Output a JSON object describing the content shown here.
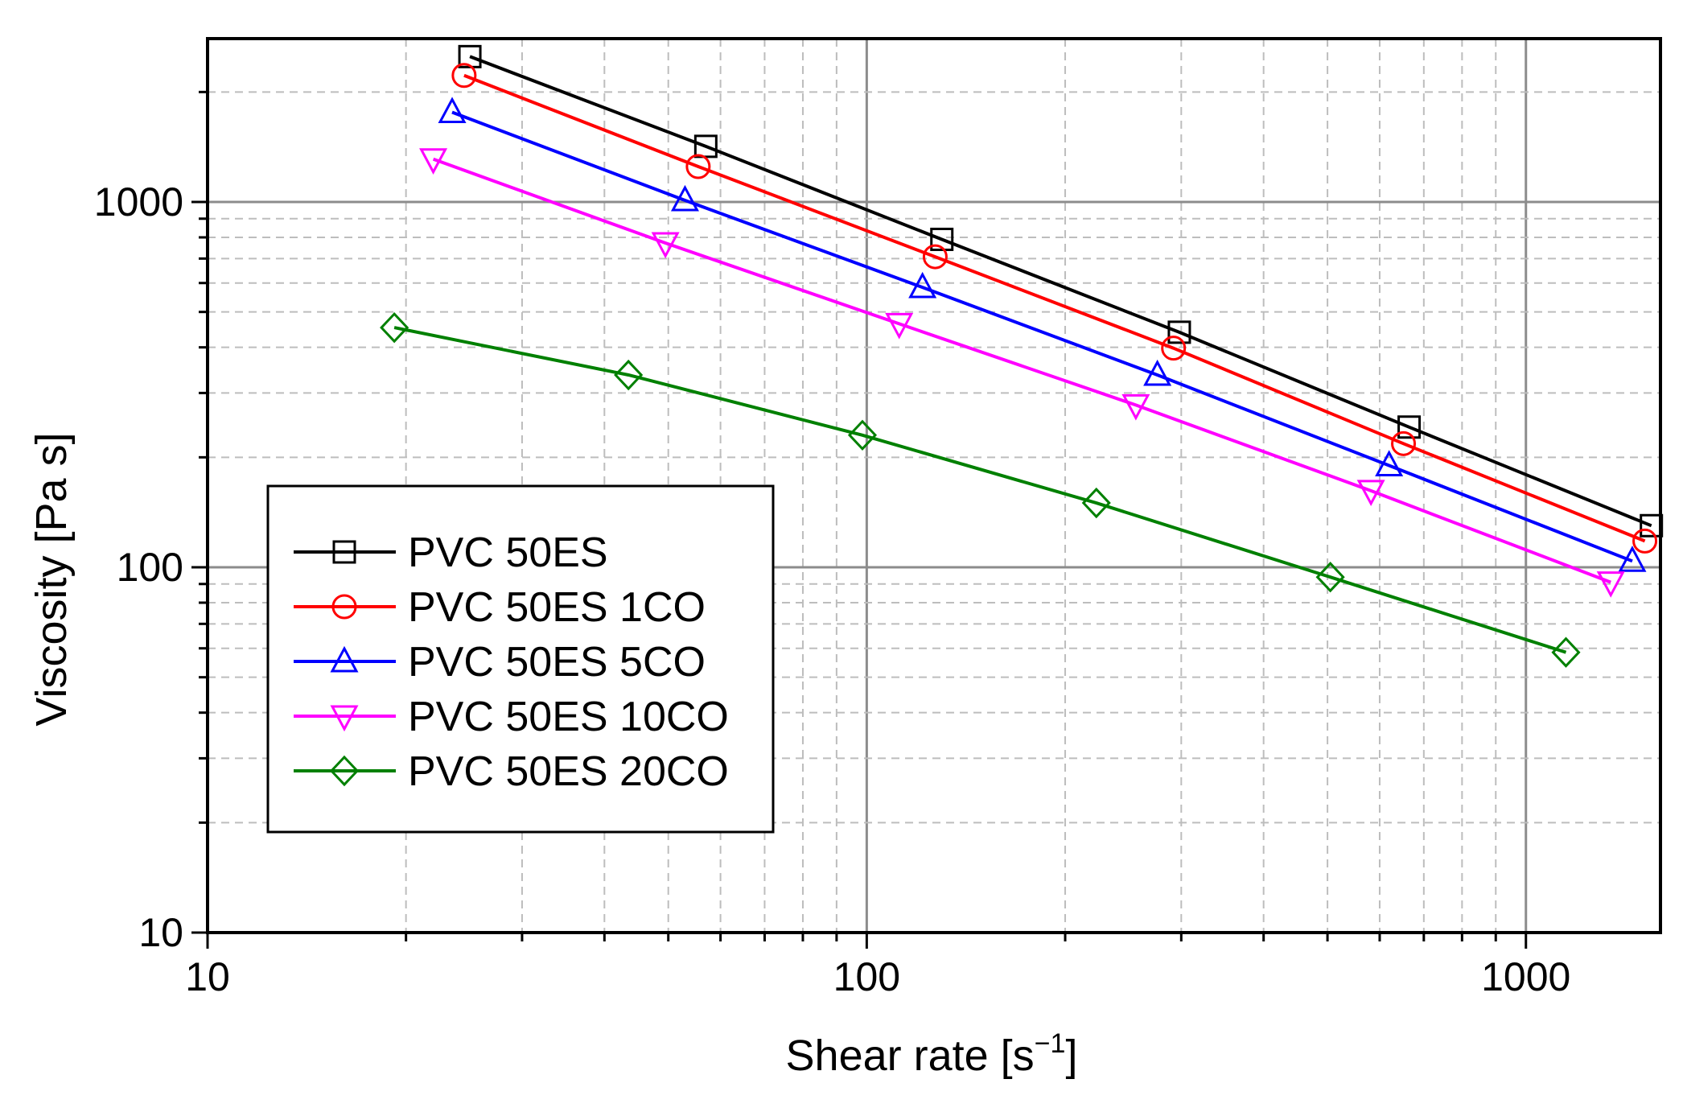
{
  "chart_data": {
    "type": "line",
    "xscale": "log",
    "yscale": "log",
    "xlabel": "Shear rate [s",
    "xlabel_sup": "−1",
    "xlabel_end": "]",
    "ylabel": "Viscosity [Pa s]",
    "xlim": [
      10,
      1600
    ],
    "ylim": [
      10,
      2800
    ],
    "x_ticks": [
      10,
      100,
      1000
    ],
    "x_tick_labels": [
      "10",
      "100",
      "1000"
    ],
    "y_ticks": [
      10,
      100,
      1000
    ],
    "y_tick_labels": [
      "10",
      "100",
      "1000"
    ],
    "grid": true,
    "legend_position": "left-center",
    "series": [
      {
        "name": "PVC 50ES",
        "color": "#000000",
        "marker": "square",
        "x": [
          25,
          57,
          130,
          298,
          665,
          1550
        ],
        "y": [
          2500,
          1420,
          790,
          440,
          242,
          130
        ]
      },
      {
        "name": "PVC 50ES 1CO",
        "color": "#ff0000",
        "marker": "circle",
        "x": [
          24.5,
          55.5,
          127,
          292,
          652,
          1515
        ],
        "y": [
          2220,
          1250,
          708,
          398,
          218,
          118
        ]
      },
      {
        "name": "PVC 50ES 5CO",
        "color": "#0000ff",
        "marker": "triangle-up",
        "x": [
          23.5,
          53,
          121.5,
          276,
          620,
          1450
        ],
        "y": [
          1760,
          1010,
          584,
          336,
          190,
          104
        ]
      },
      {
        "name": "PVC 50ES 10CO",
        "color": "#ff00ff",
        "marker": "triangle-down",
        "x": [
          22,
          49.5,
          112,
          256,
          582,
          1345
        ],
        "y": [
          1310,
          772,
          464,
          278,
          162,
          91
        ]
      },
      {
        "name": "PVC 50ES 20CO",
        "color": "#008000",
        "marker": "diamond",
        "x": [
          19.2,
          43.5,
          98.5,
          223,
          505,
          1150
        ],
        "y": [
          453,
          336,
          230,
          150,
          94,
          58.5
        ]
      }
    ]
  }
}
